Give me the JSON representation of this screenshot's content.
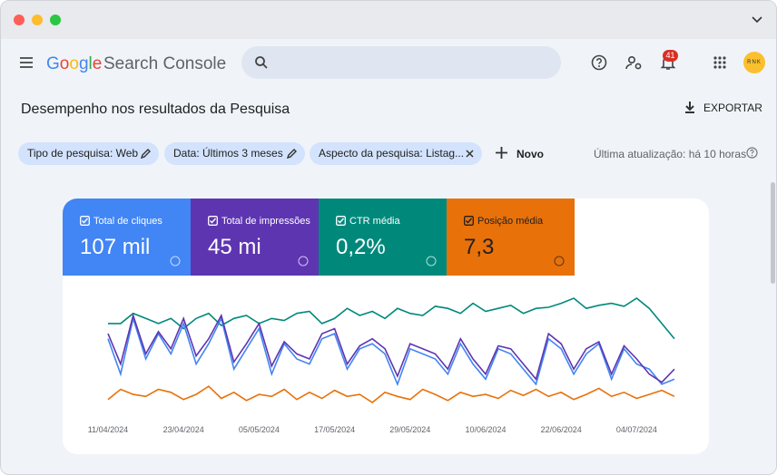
{
  "header": {
    "logo": "Google",
    "product": "Search Console",
    "notifications": "41",
    "avatar": "RNK"
  },
  "page": {
    "title": "Desempenho nos resultados da Pesquisa",
    "export": "EXPORTAR"
  },
  "filters": {
    "chips": [
      "Tipo de pesquisa: Web",
      "Data: Últimos 3 meses",
      "Aspecto da pesquisa: Listag..."
    ],
    "new": "Novo",
    "updated": "Última atualização: há 10 horas"
  },
  "performance": {
    "metrics": [
      {
        "label": "Total de cliques",
        "value": "107 mil",
        "color": "#4285f4",
        "text_color": "#ffffff",
        "values": [
          65,
          30,
          85,
          45,
          70,
          50,
          80,
          40,
          60,
          85,
          35,
          55,
          75,
          30,
          60,
          45,
          40,
          65,
          70,
          35,
          55,
          60,
          50,
          20,
          55,
          50,
          45,
          30,
          60,
          40,
          25,
          55,
          50,
          35,
          20,
          65,
          55,
          30,
          50,
          60,
          25,
          55,
          40,
          35,
          20,
          25
        ]
      },
      {
        "label": "Total de impressões",
        "value": "45 mi",
        "color": "#5e35b1",
        "text_color": "#ffffff",
        "values": [
          70,
          40,
          88,
          50,
          72,
          55,
          85,
          48,
          65,
          88,
          42,
          60,
          80,
          38,
          62,
          50,
          45,
          70,
          75,
          40,
          58,
          65,
          55,
          28,
          60,
          55,
          50,
          35,
          65,
          45,
          30,
          58,
          55,
          40,
          25,
          70,
          60,
          35,
          55,
          62,
          30,
          58,
          45,
          30,
          22,
          35
        ]
      },
      {
        "label": "CTR média",
        "value": "0,2%",
        "color": "#00897b",
        "text_color": "#ffffff",
        "values": [
          80,
          80,
          90,
          85,
          80,
          85,
          75,
          85,
          90,
          78,
          85,
          88,
          80,
          85,
          83,
          90,
          92,
          80,
          85,
          95,
          88,
          92,
          85,
          95,
          90,
          88,
          97,
          95,
          90,
          100,
          92,
          95,
          98,
          90,
          95,
          96,
          100,
          105,
          95,
          98,
          100,
          97,
          105,
          95,
          80,
          65
        ]
      },
      {
        "label": "Posição média",
        "value": "7,3",
        "color": "#e8710a",
        "text_color": "#1f1f1f",
        "values": [
          5,
          15,
          10,
          8,
          15,
          12,
          5,
          10,
          18,
          6,
          12,
          4,
          10,
          8,
          15,
          5,
          12,
          6,
          14,
          8,
          10,
          2,
          12,
          8,
          5,
          15,
          10,
          4,
          12,
          8,
          10,
          6,
          14,
          9,
          15,
          8,
          12,
          5,
          10,
          16,
          8,
          12,
          6,
          10,
          14,
          8
        ]
      }
    ],
    "dates": [
      "11/04/2024",
      null,
      null,
      null,
      null,
      null,
      "23/04/2024",
      null,
      null,
      null,
      null,
      null,
      "05/05/2024",
      null,
      null,
      null,
      null,
      null,
      "17/05/2024",
      null,
      null,
      null,
      null,
      null,
      "29/05/2024",
      null,
      null,
      null,
      null,
      null,
      "10/06/2024",
      null,
      null,
      null,
      null,
      null,
      "22/06/2024",
      null,
      null,
      null,
      null,
      null,
      "04/07/2024",
      null,
      null,
      null
    ]
  }
}
